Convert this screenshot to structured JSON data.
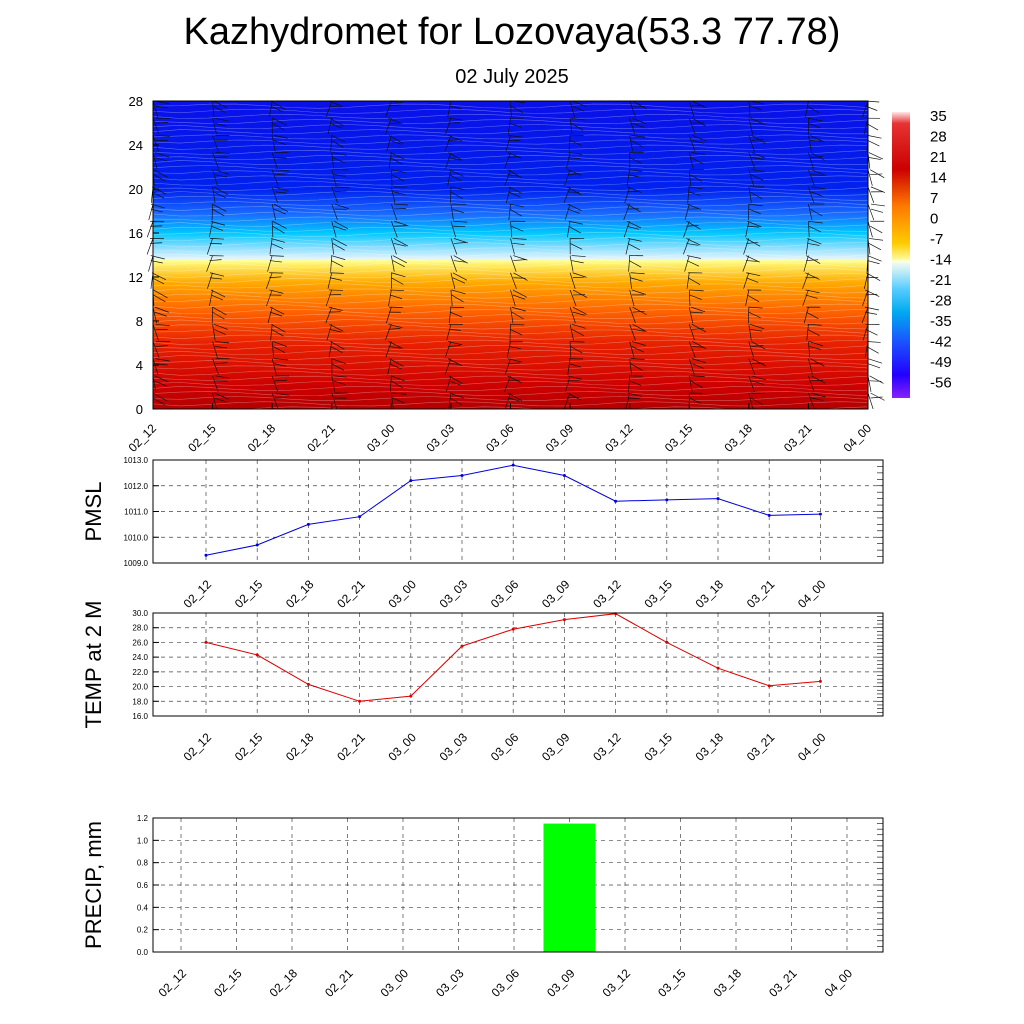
{
  "header": {
    "title": "Kazhydromet for Lozovaya(53.3 77.78)",
    "subtitle": "02 July 2025"
  },
  "chart_data": [
    {
      "type": "heatmap",
      "title": "",
      "y_ticks": [
        "0",
        "4",
        "8",
        "12",
        "16",
        "20",
        "24",
        "28"
      ],
      "ylim": [
        0,
        28
      ],
      "x_categories": [
        "02_12",
        "02_15",
        "02_18",
        "02_21",
        "03_00",
        "03_03",
        "03_06",
        "03_09",
        "03_12",
        "03_15",
        "03_18",
        "03_21",
        "04_00"
      ],
      "colorbar": {
        "labels": [
          "35",
          "28",
          "21",
          "14",
          "7",
          "0",
          "-7",
          "-14",
          "-21",
          "-28",
          "-35",
          "-42",
          "-49",
          "-56"
        ],
        "range": [
          -60,
          38
        ]
      },
      "colors": {
        "hot": "#cc0000",
        "warm": "#ff8c00",
        "neutral": "#ffff99",
        "cold": "#00c8ff",
        "frozen": "#0022ee"
      },
      "freeze_level": 13.5,
      "grid": false
    },
    {
      "type": "line",
      "ylabel": "PMSL",
      "x": [
        "02_12",
        "02_15",
        "02_18",
        "02_21",
        "03_00",
        "03_03",
        "03_06",
        "03_09",
        "03_12",
        "03_15",
        "03_18",
        "03_21",
        "04_00"
      ],
      "y": [
        1009.3,
        1009.7,
        1010.5,
        1010.8,
        1012.2,
        1012.4,
        1012.8,
        1012.4,
        1011.4,
        1011.45,
        1011.5,
        1010.85,
        1010.9
      ],
      "ylim": [
        1009.0,
        1013.0
      ],
      "y_ticks": [
        "1009.0",
        "1010.0",
        "1011.0",
        "1012.0",
        "1013.0"
      ],
      "color": "#0000dd",
      "grid": true
    },
    {
      "type": "line",
      "ylabel": "TEMP at 2 M",
      "x": [
        "02_12",
        "02_15",
        "02_18",
        "02_21",
        "03_00",
        "03_03",
        "03_06",
        "03_09",
        "03_12",
        "03_15",
        "03_18",
        "03_21",
        "04_00"
      ],
      "y": [
        26.0,
        24.3,
        20.3,
        18.0,
        18.7,
        25.5,
        27.8,
        29.1,
        29.9,
        26.0,
        22.5,
        20.1,
        20.7
      ],
      "ylim": [
        16.0,
        30.0
      ],
      "y_ticks": [
        "16.0",
        "18.0",
        "20.0",
        "22.0",
        "24.0",
        "26.0",
        "28.0",
        "30.0"
      ],
      "color": "#dd0000",
      "grid": true
    },
    {
      "type": "bar",
      "ylabel": "PRECIP, mm",
      "categories": [
        "02_12",
        "02_15",
        "02_18",
        "02_21",
        "03_00",
        "03_03",
        "03_06",
        "03_09",
        "03_12",
        "03_15",
        "03_18",
        "03_21",
        "04_00"
      ],
      "values": [
        0,
        0,
        0,
        0,
        0,
        0,
        0,
        1.15,
        0,
        0,
        0,
        0,
        0
      ],
      "ylim": [
        0.0,
        1.2
      ],
      "y_ticks": [
        "0.0",
        "0.2",
        "0.4",
        "0.6",
        "0.8",
        "1.0",
        "1.2"
      ],
      "color": "#00ff00",
      "grid": true
    }
  ]
}
